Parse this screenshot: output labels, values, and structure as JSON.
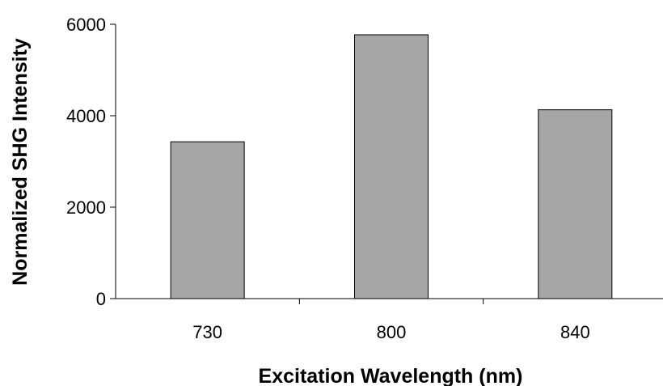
{
  "chart_data": {
    "type": "bar",
    "title": "",
    "xlabel": "Excitation Wavelength (nm)",
    "ylabel": "Normalized SHG Intensity",
    "categories": [
      "730",
      "800",
      "840"
    ],
    "values": [
      3430,
      5770,
      4130
    ],
    "ylim": [
      0,
      6000
    ],
    "yticks": [
      0,
      2000,
      4000,
      6000
    ],
    "grid": false,
    "legend": "none",
    "bar_color": "#a6a6a6",
    "bar_edge_color": "#000000"
  }
}
